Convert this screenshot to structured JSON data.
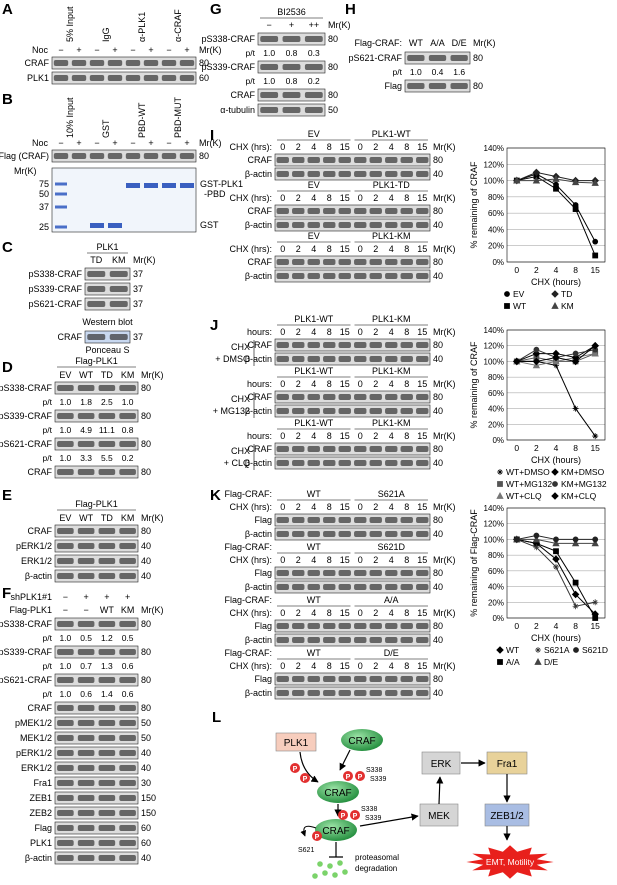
{
  "common": {
    "mr": "Mr(K)"
  },
  "A": {
    "letter": "A",
    "lanes": [
      "5% Input",
      "IgG",
      "α-PLK1",
      "α-CRAF"
    ],
    "noc_label": "Noc",
    "noc": [
      "−",
      "+",
      "−",
      "+",
      "−",
      "+",
      "−",
      "+"
    ],
    "rows": [
      {
        "label": "CRAF",
        "mr": "80"
      },
      {
        "label": "PLK1",
        "mr": "60"
      }
    ]
  },
  "B": {
    "letter": "B",
    "lanes": [
      "10% Input",
      "GST",
      "PBD-WT",
      "PBD-MUT"
    ],
    "noc_label": "Noc",
    "noc": [
      "−",
      "+",
      "−",
      "+",
      "−",
      "+",
      "−",
      "+"
    ],
    "rows": [
      {
        "label": "Flag (CRAF)",
        "mr": "80"
      }
    ],
    "gel_ladder": [
      "75",
      "50",
      "37",
      "25"
    ],
    "gel_labels": [
      "GST-PLK1",
      "-PBD",
      "GST"
    ]
  },
  "C": {
    "letter": "C",
    "group": "PLK1",
    "lanes": [
      "TD",
      "KM"
    ],
    "rows": [
      {
        "label": "pS338-CRAF",
        "mr": "37"
      },
      {
        "label": "pS339-CRAF",
        "mr": "37"
      },
      {
        "label": "pS621-CRAF",
        "mr": "37"
      }
    ],
    "caption1": "Western blot",
    "stain_row": {
      "label": "CRAF",
      "mr": "37"
    },
    "caption2": "Ponceau S"
  },
  "D": {
    "letter": "D",
    "group": "Flag-PLK1",
    "lanes": [
      "EV",
      "WT",
      "TD",
      "KM"
    ],
    "ratio_label": "p/t",
    "rows": [
      {
        "label": "pS338-CRAF",
        "mr": "80",
        "pt": [
          "1.0",
          "1.8",
          "2.5",
          "1.0"
        ]
      },
      {
        "label": "pS339-CRAF",
        "mr": "80",
        "pt": [
          "1.0",
          "4.9",
          "11.1",
          "0.8"
        ]
      },
      {
        "label": "pS621-CRAF",
        "mr": "80",
        "pt": [
          "1.0",
          "3.3",
          "5.5",
          "0.2"
        ]
      },
      {
        "label": "CRAF",
        "mr": "80"
      }
    ]
  },
  "E": {
    "letter": "E",
    "group": "Flag-PLK1",
    "lanes": [
      "EV",
      "WT",
      "TD",
      "KM"
    ],
    "rows": [
      {
        "label": "CRAF",
        "mr": "80"
      },
      {
        "label": "pERK1/2",
        "mr": "40"
      },
      {
        "label": "ERK1/2",
        "mr": "40"
      },
      {
        "label": "β-actin",
        "mr": "40"
      }
    ]
  },
  "F": {
    "letter": "F",
    "sh_label": "shPLK1#1",
    "sh": [
      "−",
      "+",
      "+",
      "+"
    ],
    "flag_label": "Flag-PLK1",
    "flag": [
      "−",
      "−",
      "WT",
      "KM"
    ],
    "ratio_label": "p/t",
    "rows": [
      {
        "label": "pS338-CRAF",
        "mr": "80",
        "pt": [
          "1.0",
          "0.5",
          "1.2",
          "0.5"
        ]
      },
      {
        "label": "pS339-CRAF",
        "mr": "80",
        "pt": [
          "1.0",
          "0.7",
          "1.3",
          "0.6"
        ]
      },
      {
        "label": "pS621-CRAF",
        "mr": "80",
        "pt": [
          "1.0",
          "0.6",
          "1.4",
          "0.6"
        ]
      },
      {
        "label": "CRAF",
        "mr": "80"
      },
      {
        "label": "pMEK1/2",
        "mr": "50"
      },
      {
        "label": "MEK1/2",
        "mr": "50"
      },
      {
        "label": "pERK1/2",
        "mr": "40"
      },
      {
        "label": "ERK1/2",
        "mr": "40"
      },
      {
        "label": "Fra1",
        "mr": "30"
      },
      {
        "label": "ZEB1",
        "mr": "150"
      },
      {
        "label": "ZEB2",
        "mr": "150"
      },
      {
        "label": "Flag",
        "mr": "60"
      },
      {
        "label": "PLK1",
        "mr": "60"
      },
      {
        "label": "β-actin",
        "mr": "40"
      }
    ]
  },
  "G": {
    "letter": "G",
    "group": "BI2536",
    "lanes": [
      "−",
      "+",
      "++"
    ],
    "ratio_label": "p/t",
    "rows": [
      {
        "label": "pS338-CRAF",
        "mr": "80",
        "pt": [
          "1.0",
          "0.8",
          "0.3"
        ]
      },
      {
        "label": "pS339-CRAF",
        "mr": "80",
        "pt": [
          "1.0",
          "0.8",
          "0.2"
        ]
      },
      {
        "label": "CRAF",
        "mr": "80"
      },
      {
        "label": "α-tubulin",
        "mr": "50"
      }
    ]
  },
  "H": {
    "letter": "H",
    "group": "Flag-CRAF:",
    "lanes": [
      "WT",
      "A/A",
      "D/E"
    ],
    "ratio_label": "p/t",
    "rows": [
      {
        "label": "pS621-CRAF",
        "mr": "80",
        "pt": [
          "1.0",
          "0.4",
          "1.6"
        ]
      },
      {
        "label": "Flag",
        "mr": "80"
      }
    ]
  },
  "I": {
    "letter": "I",
    "time_label": "CHX (hrs):",
    "times": [
      "0",
      "2",
      "4",
      "8",
      "15"
    ],
    "blocks": [
      {
        "groups": [
          "EV",
          "PLK1-WT"
        ],
        "rows": [
          {
            "label": "CRAF",
            "mr": "80"
          },
          {
            "label": "β-actin",
            "mr": "40"
          }
        ]
      },
      {
        "groups": [
          "EV",
          "PLK1-TD"
        ],
        "rows": [
          {
            "label": "CRAF",
            "mr": "80"
          },
          {
            "label": "β-actin",
            "mr": "40"
          }
        ]
      },
      {
        "groups": [
          "EV",
          "PLK1-KM"
        ],
        "rows": [
          {
            "label": "CRAF",
            "mr": "80"
          },
          {
            "label": "β-actin",
            "mr": "40"
          }
        ]
      }
    ]
  },
  "J": {
    "letter": "J",
    "time_label": "hours:",
    "times": [
      "0",
      "2",
      "4",
      "8",
      "15"
    ],
    "blocks": [
      {
        "treatment": [
          "CHX",
          "+ DMSO"
        ],
        "groups": [
          "PLK1-WT",
          "PLK1-KM"
        ],
        "rows": [
          {
            "label": "CRAF",
            "mr": "80"
          },
          {
            "label": "β-actin",
            "mr": "40"
          }
        ]
      },
      {
        "treatment": [
          "CHX",
          "+ MG132"
        ],
        "groups": [
          "PLK1-WT",
          "PLK1-KM"
        ],
        "rows": [
          {
            "label": "CRAF",
            "mr": "80"
          },
          {
            "label": "β-actin",
            "mr": "40"
          }
        ]
      },
      {
        "treatment": [
          "CHX",
          "+ CLQ"
        ],
        "groups": [
          "PLK1-WT",
          "PLK1-KM"
        ],
        "rows": [
          {
            "label": "CRAF",
            "mr": "80"
          },
          {
            "label": "β-actin",
            "mr": "40"
          }
        ]
      }
    ]
  },
  "K": {
    "letter": "K",
    "construct_label": "Flag-CRAF:",
    "time_label": "CHX (hrs):",
    "times": [
      "0",
      "2",
      "4",
      "8",
      "15"
    ],
    "blocks": [
      {
        "groups": [
          "WT",
          "S621A"
        ],
        "rows": [
          {
            "label": "Flag",
            "mr": "80"
          },
          {
            "label": "β-actin",
            "mr": "40"
          }
        ]
      },
      {
        "groups": [
          "WT",
          "S621D"
        ],
        "rows": [
          {
            "label": "Flag",
            "mr": "80"
          },
          {
            "label": "β-actin",
            "mr": "40"
          }
        ]
      },
      {
        "groups": [
          "WT",
          "A/A"
        ],
        "rows": [
          {
            "label": "Flag",
            "mr": "80"
          },
          {
            "label": "β-actin",
            "mr": "40"
          }
        ]
      },
      {
        "groups": [
          "WT",
          "D/E"
        ],
        "rows": [
          {
            "label": "Flag",
            "mr": "80"
          },
          {
            "label": "β-actin",
            "mr": "40"
          }
        ]
      }
    ]
  },
  "L": {
    "letter": "L",
    "plk1": "PLK1",
    "craf": "CRAF",
    "p": "P",
    "s338": "S338",
    "s339": "S339",
    "s621": "S621",
    "degradation": [
      "proteasomal",
      "degradation"
    ],
    "mek": "MEK",
    "erk": "ERK",
    "fra1": "Fra1",
    "zeb": "ZEB1/2",
    "emt": "EMT, Motility"
  },
  "chart_data": [
    {
      "type": "line",
      "ylabel": "% remaining of CRAF",
      "xlabel": "CHX (hours)",
      "categories": [
        "0",
        "2",
        "4",
        "8",
        "15"
      ],
      "ylim": [
        0,
        140
      ],
      "yticks": [
        {
          "value": 0,
          "label": "0%"
        },
        {
          "value": 20,
          "label": "20%"
        },
        {
          "value": 40,
          "label": "40%"
        },
        {
          "value": 60,
          "label": "60%"
        },
        {
          "value": 80,
          "label": "80%"
        },
        {
          "value": 100,
          "label": "100%"
        },
        {
          "value": 120,
          "label": "120%"
        },
        {
          "value": 140,
          "label": "140%"
        }
      ],
      "grid": true,
      "series": [
        {
          "name": "EV",
          "color": "#000000",
          "marker": "circle",
          "values": [
            100,
            108,
            95,
            70,
            25
          ]
        },
        {
          "name": "WT",
          "color": "#000000",
          "marker": "square",
          "values": [
            100,
            105,
            90,
            65,
            8
          ]
        },
        {
          "name": "TD",
          "color": "#222222",
          "marker": "diamond",
          "values": [
            100,
            110,
            105,
            100,
            100
          ]
        },
        {
          "name": "KM",
          "color": "#444444",
          "marker": "triangle",
          "values": [
            100,
            100,
            102,
            98,
            97
          ]
        }
      ]
    },
    {
      "type": "line",
      "ylabel": "% remaining of CRAF",
      "xlabel": "CHX (hours)",
      "categories": [
        "0",
        "2",
        "4",
        "8",
        "15"
      ],
      "ylim": [
        0,
        140
      ],
      "yticks": [
        {
          "value": 0,
          "label": "0%"
        },
        {
          "value": 20,
          "label": "20%"
        },
        {
          "value": 40,
          "label": "40%"
        },
        {
          "value": 60,
          "label": "60%"
        },
        {
          "value": 80,
          "label": "80%"
        },
        {
          "value": 100,
          "label": "100%"
        },
        {
          "value": 120,
          "label": "120%"
        },
        {
          "value": 140,
          "label": "140%"
        }
      ],
      "grid": true,
      "series": [
        {
          "name": "WT+DMSO",
          "color": "#000000",
          "marker": "cross",
          "values": [
            100,
            100,
            95,
            40,
            5
          ]
        },
        {
          "name": "WT+MG132",
          "color": "#555555",
          "marker": "square",
          "values": [
            100,
            105,
            100,
            100,
            110
          ]
        },
        {
          "name": "WT+CLQ",
          "color": "#777777",
          "marker": "triangle",
          "values": [
            100,
            95,
            100,
            105,
            110
          ]
        },
        {
          "name": "KM+DMSO",
          "color": "#000000",
          "marker": "diamond",
          "values": [
            100,
            110,
            110,
            105,
            120
          ]
        },
        {
          "name": "KM+MG132",
          "color": "#333333",
          "marker": "circle",
          "values": [
            100,
            115,
            105,
            110,
            115
          ]
        },
        {
          "name": "KM+CLQ",
          "color": "#000000",
          "marker": "diamond",
          "values": [
            100,
            100,
            105,
            100,
            120
          ]
        }
      ]
    },
    {
      "type": "line",
      "ylabel": "% remaining of Flag-CRAF",
      "xlabel": "CHX (hours)",
      "categories": [
        "0",
        "2",
        "4",
        "8",
        "15"
      ],
      "ylim": [
        0,
        140
      ],
      "yticks": [
        {
          "value": 0,
          "label": "0%"
        },
        {
          "value": 20,
          "label": "20%"
        },
        {
          "value": 40,
          "label": "40%"
        },
        {
          "value": 60,
          "label": "60%"
        },
        {
          "value": 80,
          "label": "80%"
        },
        {
          "value": 100,
          "label": "100%"
        },
        {
          "value": 120,
          "label": "120%"
        },
        {
          "value": 140,
          "label": "140%"
        }
      ],
      "grid": true,
      "series": [
        {
          "name": "WT",
          "color": "#000000",
          "marker": "diamond",
          "values": [
            100,
            95,
            75,
            30,
            5
          ]
        },
        {
          "name": "A/A",
          "color": "#000000",
          "marker": "square",
          "values": [
            100,
            95,
            85,
            45,
            0
          ]
        },
        {
          "name": "S621A",
          "color": "#333333",
          "marker": "cross",
          "values": [
            100,
            90,
            65,
            15,
            20
          ]
        },
        {
          "name": "D/E",
          "color": "#444444",
          "marker": "triangle",
          "values": [
            100,
            100,
            95,
            95,
            95
          ]
        },
        {
          "name": "S621D",
          "color": "#222222",
          "marker": "circle",
          "values": [
            100,
            105,
            100,
            100,
            100
          ]
        }
      ]
    }
  ]
}
